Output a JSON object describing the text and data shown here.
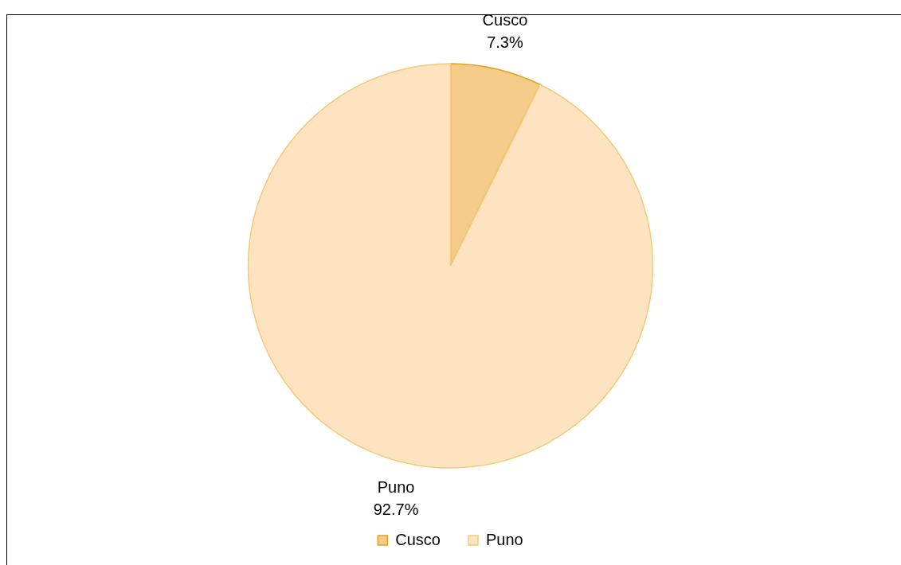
{
  "chart_data": {
    "type": "pie",
    "categories": [
      "Cusco",
      "Puno"
    ],
    "values": [
      7.3,
      92.7
    ],
    "colors": [
      "#f5cb8a",
      "#fde3bf"
    ],
    "value_labels": [
      "7.3%",
      "92.7%"
    ],
    "legend": "bottom"
  }
}
